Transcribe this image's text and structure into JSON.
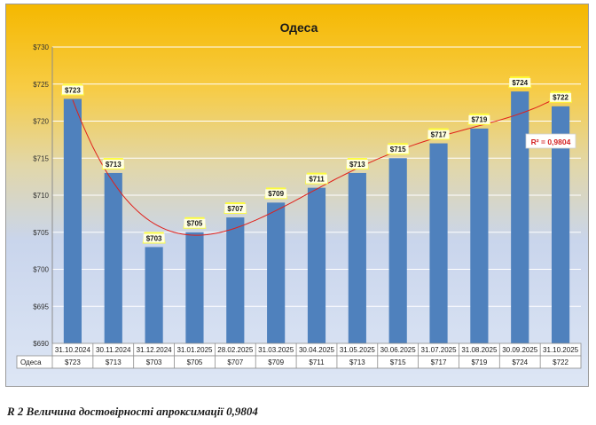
{
  "chart_data": {
    "type": "bar",
    "title": "Одеса",
    "series_name": "Одеса",
    "categories": [
      "31.10.2024",
      "30.11.2024",
      "31.12.2024",
      "31.01.2025",
      "28.02.2025",
      "31.03.2025",
      "30.04.2025",
      "31.05.2025",
      "30.06.2025",
      "31.07.2025",
      "31.08.2025",
      "30.09.2025",
      "31.10.2025"
    ],
    "values": [
      723,
      713,
      703,
      705,
      707,
      709,
      711,
      713,
      715,
      717,
      719,
      724,
      722
    ],
    "data_labels": [
      "$723",
      "$713",
      "$703",
      "$705",
      "$707",
      "$709",
      "$711",
      "$713",
      "$715",
      "$717",
      "$719",
      "$724",
      "$722"
    ],
    "ylim": [
      690,
      730
    ],
    "yticks": [
      690,
      695,
      700,
      705,
      710,
      715,
      720,
      725,
      730
    ],
    "ytick_labels": [
      "$690",
      "$695",
      "$700",
      "$705",
      "$710",
      "$715",
      "$720",
      "$725",
      "$730"
    ],
    "trendline": {
      "type": "polynomial",
      "r_squared_label": "R² = 0,9804"
    },
    "data_table": true,
    "grid": true,
    "colors": {
      "bar": "#4f81bd",
      "trend": "#e0201a",
      "label_highlight": "#ffff33",
      "r2_text": "#d42020"
    }
  },
  "caption": "R 2 Величина достовірності апроксимації 0,9804"
}
